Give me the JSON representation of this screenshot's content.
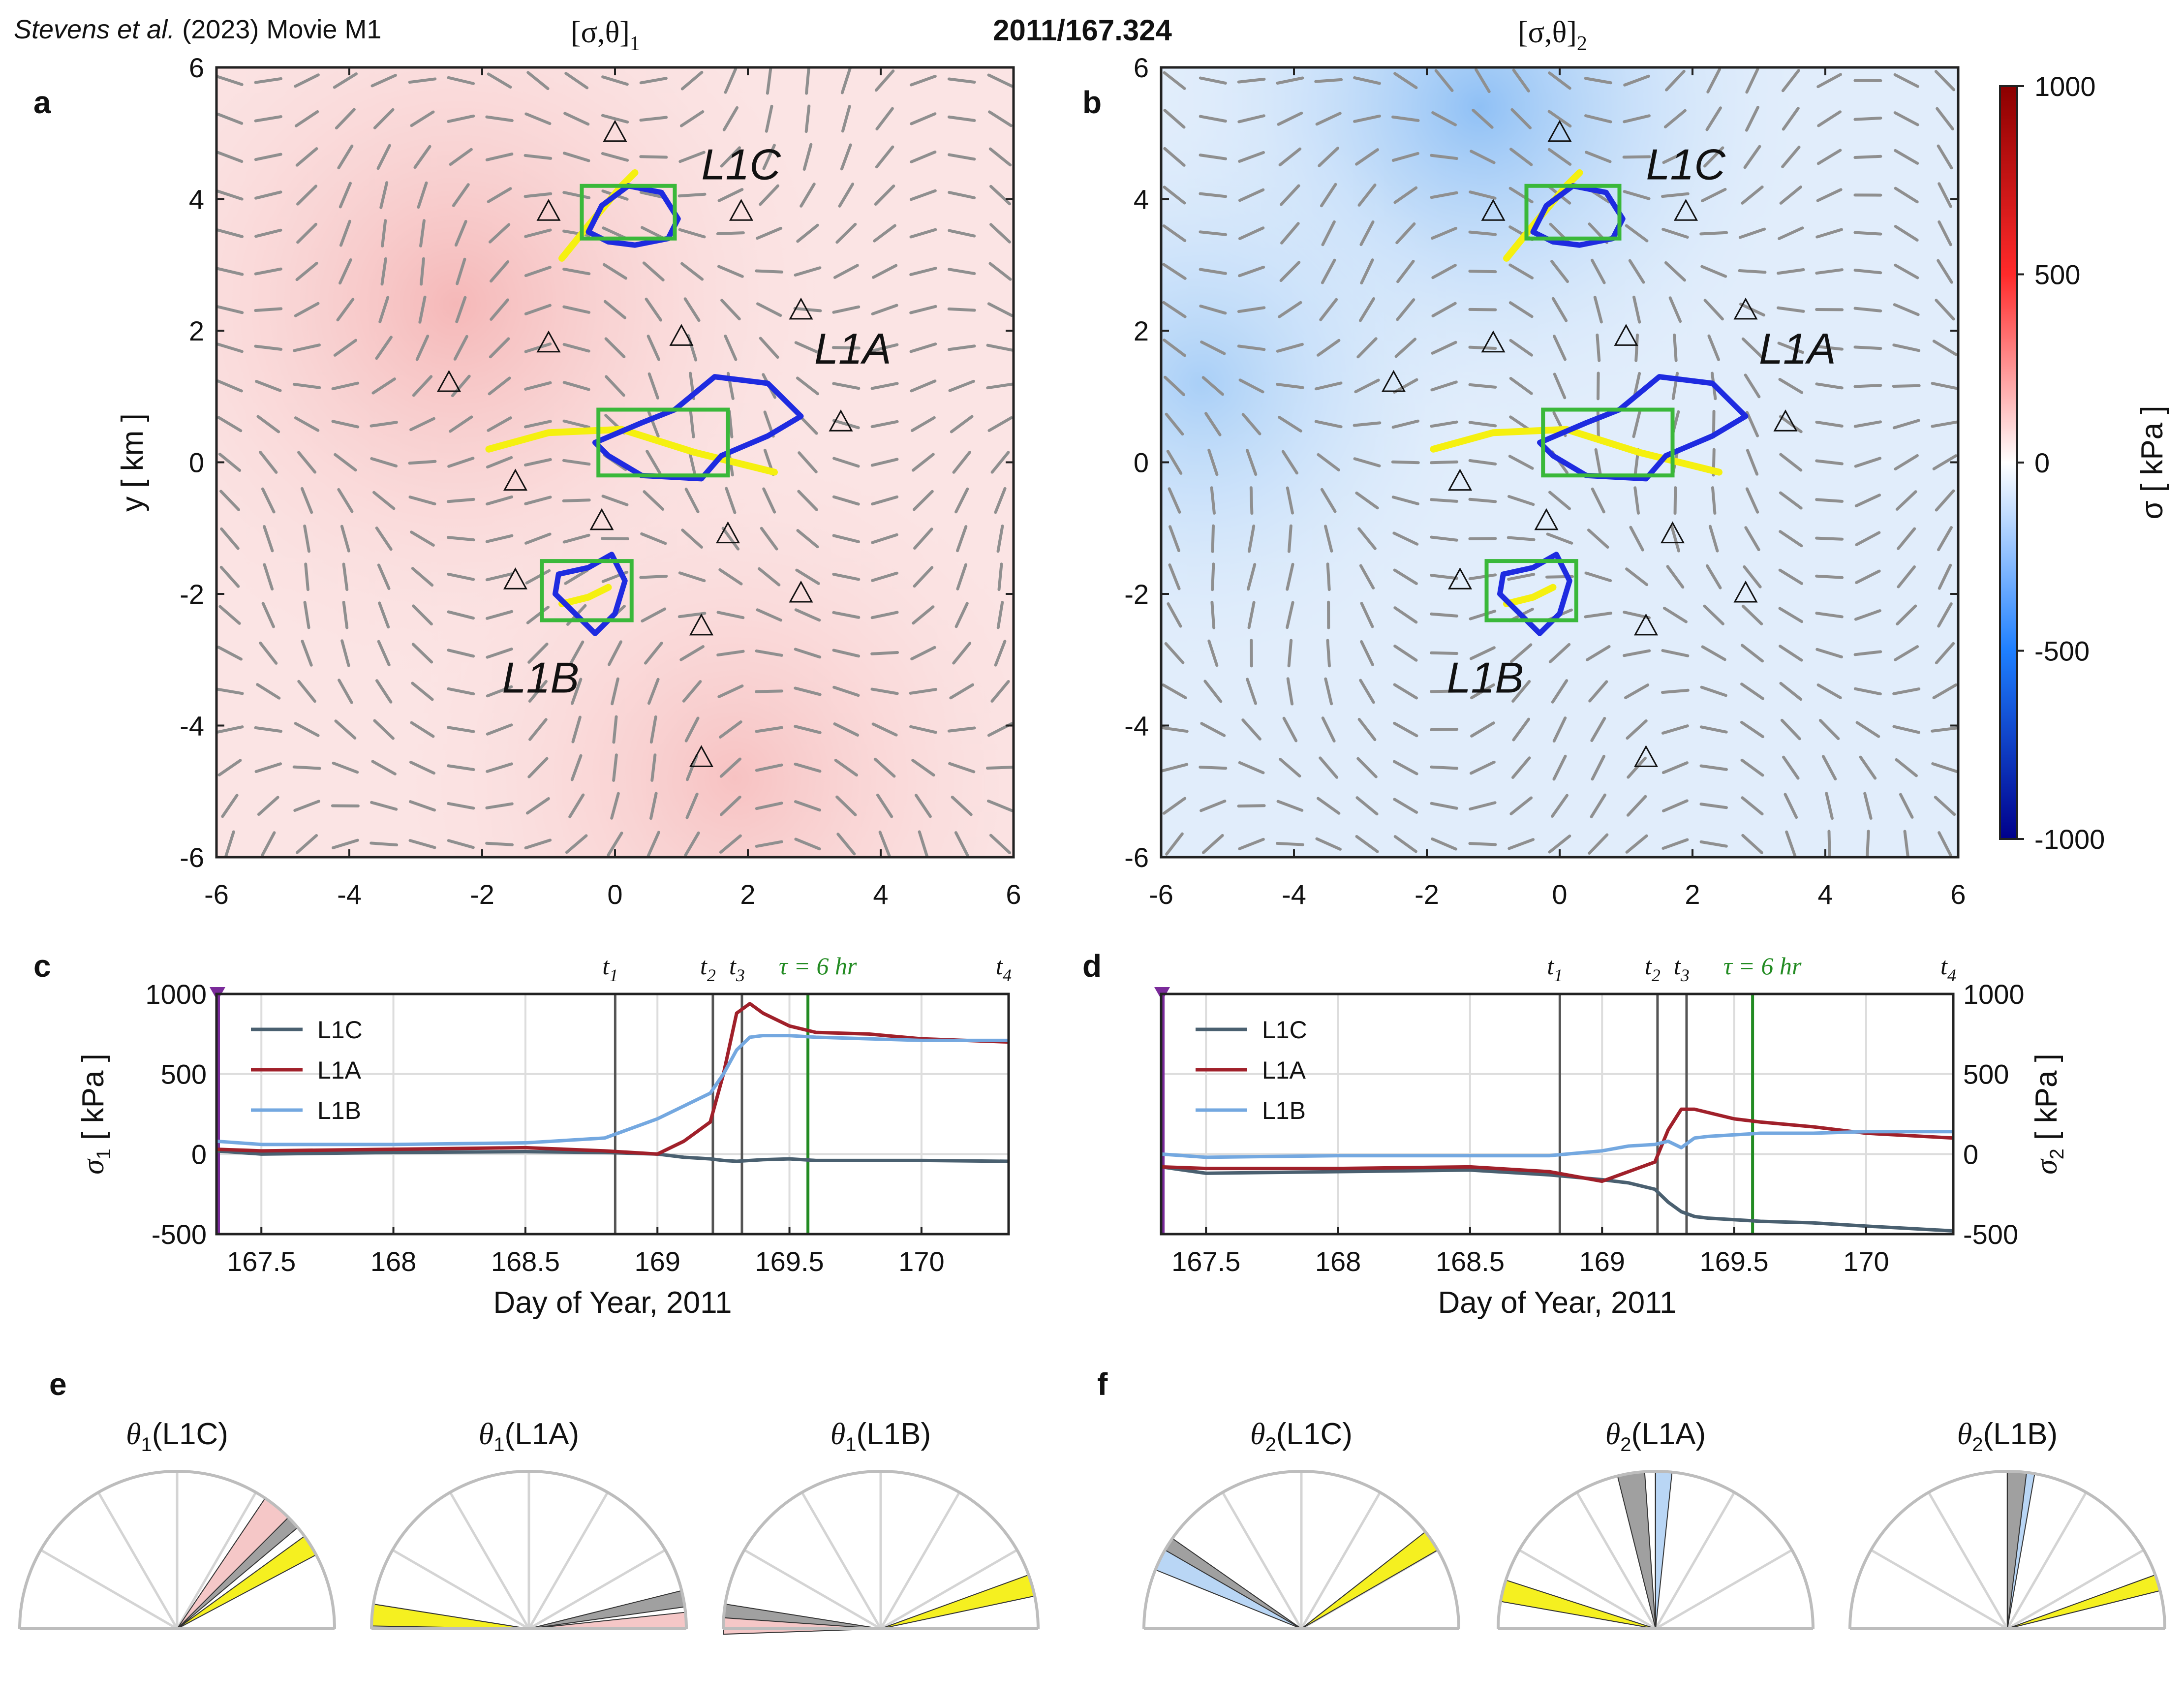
{
  "header": {
    "citation_authors": "Stevens et al.",
    "citation_rest": "(2023) Movie M1",
    "timestamp": "2011/167.324",
    "label_a": "[σ,θ]",
    "label_a_sub": "1",
    "label_b": "[σ,θ]",
    "label_b_sub": "2"
  },
  "maps": {
    "panel_a": "a",
    "panel_b": "b",
    "x_ticks": [
      "-6",
      "-4",
      "-2",
      "0",
      "2",
      "4",
      "6"
    ],
    "y_ticks": [
      "6",
      "4",
      "2",
      "0",
      "-2",
      "-4",
      "-6"
    ],
    "ylabel": "y [ km ]",
    "regions": [
      {
        "name": "L1C",
        "box": {
          "x0": -0.5,
          "x1": 0.9,
          "y0": 3.4,
          "y1": 4.2
        }
      },
      {
        "name": "L1A",
        "box": {
          "x0": -0.25,
          "x1": 1.7,
          "y0": -0.2,
          "y1": 0.8
        }
      },
      {
        "name": "L1B",
        "box": {
          "x0": -1.1,
          "x1": 0.25,
          "y0": -2.4,
          "y1": -1.5
        }
      }
    ],
    "region_labels": [
      "L1C",
      "L1A",
      "L1B"
    ],
    "stations": [
      [
        0.0,
        5.0
      ],
      [
        -1.0,
        3.8
      ],
      [
        1.9,
        3.8
      ],
      [
        2.8,
        2.3
      ],
      [
        1.0,
        1.9
      ],
      [
        -1.0,
        1.8
      ],
      [
        -2.5,
        1.2
      ],
      [
        3.4,
        0.6
      ],
      [
        -1.5,
        -0.3
      ],
      [
        -0.2,
        -0.9
      ],
      [
        1.7,
        -1.1
      ],
      [
        -1.5,
        -1.8
      ],
      [
        2.8,
        -2.0
      ],
      [
        1.3,
        -2.5
      ],
      [
        1.3,
        -4.5
      ]
    ],
    "colorbar": {
      "ticks": [
        "1000",
        "500",
        "0",
        "-500",
        "-1000"
      ],
      "label": "σ [ kPa ]",
      "low_color": "#00008b",
      "mid_color": "#ffffff",
      "high_color": "#8b0000"
    }
  },
  "timeseries": {
    "panel_c": "c",
    "panel_d": "d",
    "xlabel": "Day of Year, 2011",
    "ylabel_c": "σ",
    "ylabel_c_sub": "1",
    "ylabel_d": "σ",
    "ylabel_d_sub": "2",
    "ylabel_unit": "[ kPa ]",
    "markers": [
      {
        "label": "t",
        "sub": "1",
        "day": 168.84
      },
      {
        "label": "t",
        "sub": "2",
        "day": 169.21
      },
      {
        "label": "t",
        "sub": "3",
        "day": 169.32
      },
      {
        "label": "t",
        "sub": "4",
        "day": 170.33
      }
    ],
    "tau_label": "τ = 6 hr",
    "tau_day": 169.57,
    "tau_color": "#228b22"
  },
  "roses": {
    "panel_e": "e",
    "panel_f": "f",
    "titles_e": [
      {
        "sym": "θ",
        "sub": "1",
        "name": "(L1C)"
      },
      {
        "sym": "θ",
        "sub": "1",
        "name": "(L1A)"
      },
      {
        "sym": "θ",
        "sub": "1",
        "name": "(L1B)"
      }
    ],
    "titles_f": [
      {
        "sym": "θ",
        "sub": "2",
        "name": "(L1C)"
      },
      {
        "sym": "θ",
        "sub": "2",
        "name": "(L1A)"
      },
      {
        "sym": "θ",
        "sub": "2",
        "name": "(L1B)"
      }
    ]
  },
  "chart_data": [
    {
      "type": "line",
      "title": "c",
      "xlabel": "Day of Year, 2011",
      "ylabel": "σ1 [ kPa ]",
      "xlim": [
        167.33,
        170.33
      ],
      "ylim": [
        -500,
        1000
      ],
      "x_ticks": [
        "167.5",
        "168",
        "168.5",
        "169",
        "169.5",
        "170"
      ],
      "y_ticks": [
        "1000",
        "500",
        "0",
        "-500"
      ],
      "x": [
        167.33,
        167.5,
        168.0,
        168.5,
        168.8,
        169.0,
        169.1,
        169.2,
        169.25,
        169.3,
        169.35,
        169.4,
        169.5,
        169.6,
        169.8,
        170.0,
        170.33
      ],
      "series": [
        {
          "name": "L1C",
          "color": "#4a6070",
          "values": [
            20,
            0,
            10,
            15,
            10,
            0,
            -20,
            -30,
            -40,
            -45,
            -40,
            -35,
            -30,
            -40,
            -40,
            -40,
            -45
          ]
        },
        {
          "name": "L1A",
          "color": "#a0202a",
          "values": [
            30,
            20,
            30,
            40,
            20,
            0,
            80,
            200,
            500,
            880,
            940,
            880,
            800,
            760,
            750,
            720,
            700
          ]
        },
        {
          "name": "L1B",
          "color": "#74a8e0",
          "values": [
            80,
            60,
            60,
            70,
            100,
            220,
            300,
            380,
            500,
            650,
            730,
            740,
            740,
            730,
            720,
            710,
            710
          ]
        }
      ],
      "legend": [
        "L1C",
        "L1A",
        "L1B"
      ]
    },
    {
      "type": "line",
      "title": "d",
      "xlabel": "Day of Year, 2011",
      "ylabel": "σ2 [ kPa ]",
      "xlim": [
        167.33,
        170.33
      ],
      "ylim": [
        -500,
        1000
      ],
      "x_ticks": [
        "167.5",
        "168",
        "168.5",
        "169",
        "169.5",
        "170"
      ],
      "y_ticks": [
        "1000",
        "500",
        "0",
        "-500"
      ],
      "x": [
        167.33,
        167.5,
        168.0,
        168.5,
        168.8,
        169.0,
        169.1,
        169.2,
        169.25,
        169.3,
        169.35,
        169.4,
        169.5,
        169.6,
        169.8,
        170.0,
        170.33
      ],
      "series": [
        {
          "name": "L1C",
          "color": "#4a6070",
          "values": [
            -80,
            -120,
            -110,
            -100,
            -130,
            -160,
            -180,
            -220,
            -300,
            -360,
            -390,
            -400,
            -410,
            -420,
            -430,
            -450,
            -480
          ]
        },
        {
          "name": "L1A",
          "color": "#a0202a",
          "values": [
            -80,
            -90,
            -90,
            -80,
            -110,
            -170,
            -110,
            -50,
            150,
            280,
            280,
            260,
            220,
            200,
            170,
            130,
            100
          ]
        },
        {
          "name": "L1B",
          "color": "#74a8e0",
          "values": [
            0,
            -20,
            -10,
            -10,
            -10,
            20,
            50,
            60,
            80,
            40,
            100,
            110,
            120,
            130,
            130,
            140,
            140
          ]
        }
      ],
      "legend": [
        "L1C",
        "L1A",
        "L1B"
      ]
    },
    {
      "type": "rose",
      "title": "e",
      "wedges": [
        {
          "region": "L1C",
          "yellow": [
            28,
            36
          ],
          "grey": [
            40,
            45
          ],
          "pink": [
            44,
            56
          ]
        },
        {
          "region": "L1A",
          "yellow": [
            171,
            179
          ],
          "grey": [
            8,
            14
          ],
          "pink": [
            0,
            6
          ]
        },
        {
          "region": "L1B",
          "yellow": [
            12,
            20
          ],
          "grey": [
            171,
            176
          ],
          "pink": [
            174,
            182
          ]
        }
      ]
    },
    {
      "type": "rose",
      "title": "f",
      "wedges": [
        {
          "region": "L1C",
          "yellow": [
            30,
            38
          ],
          "grey": [
            145,
            150
          ],
          "blue": [
            148,
            158
          ]
        },
        {
          "region": "L1A",
          "yellow": [
            162,
            170
          ],
          "grey": [
            94,
            104
          ],
          "blue": [
            84,
            90
          ]
        },
        {
          "region": "L1B",
          "yellow": [
            14,
            20
          ],
          "grey": [
            83,
            90
          ],
          "blue": [
            80,
            85
          ]
        }
      ]
    }
  ]
}
